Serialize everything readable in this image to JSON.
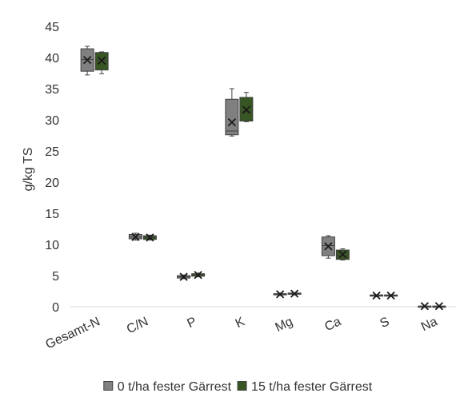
{
  "chart_data": {
    "type": "box",
    "ylabel": "g/kg TS",
    "xlabel": "",
    "ylim": [
      0,
      45
    ],
    "yticks": [
      0,
      5,
      10,
      15,
      20,
      25,
      30,
      35,
      40,
      45
    ],
    "grid": false,
    "legend_position": "bottom",
    "categories": [
      "Gesamt-N",
      "C/N",
      "P",
      "K",
      "Mg",
      "Ca",
      "S",
      "Na"
    ],
    "series": [
      {
        "name": "0 t/ha fester Gärrest",
        "color": "#808080",
        "boxes": [
          {
            "min": 37.2,
            "q1": 37.8,
            "median": 39.7,
            "q3": 41.4,
            "max": 41.8,
            "mean": 39.6
          },
          {
            "min": 10.7,
            "q1": 10.9,
            "median": 11.2,
            "q3": 11.6,
            "max": 11.8,
            "mean": 11.2
          },
          {
            "min": 4.5,
            "q1": 4.6,
            "median": 4.8,
            "q3": 5.0,
            "max": 5.1,
            "mean": 4.8
          },
          {
            "min": 27.4,
            "q1": 27.6,
            "median": 28.2,
            "q3": 33.3,
            "max": 35.0,
            "mean": 29.6
          },
          {
            "min": 1.8,
            "q1": 1.9,
            "median": 2.0,
            "q3": 2.1,
            "max": 2.2,
            "mean": 2.0
          },
          {
            "min": 7.8,
            "q1": 8.2,
            "median": 9.8,
            "q3": 11.2,
            "max": 11.4,
            "mean": 9.7
          },
          {
            "min": 1.6,
            "q1": 1.7,
            "median": 1.8,
            "q3": 1.9,
            "max": 1.9,
            "mean": 1.8
          },
          {
            "min": 0.1,
            "q1": 0.1,
            "median": 0.1,
            "q3": 0.1,
            "max": 0.1,
            "mean": 0.1
          }
        ]
      },
      {
        "name": "15 t/ha fester Gärrest",
        "color": "#375623",
        "boxes": [
          {
            "min": 37.4,
            "q1": 38.0,
            "median": 39.6,
            "q3": 40.8,
            "max": 40.9,
            "mean": 39.5
          },
          {
            "min": 10.7,
            "q1": 10.8,
            "median": 11.1,
            "q3": 11.4,
            "max": 11.5,
            "mean": 11.1
          },
          {
            "min": 4.8,
            "q1": 4.9,
            "median": 5.1,
            "q3": 5.3,
            "max": 5.4,
            "mean": 5.1
          },
          {
            "min": 29.7,
            "q1": 29.8,
            "median": 31.3,
            "q3": 33.6,
            "max": 34.4,
            "mean": 31.6
          },
          {
            "min": 1.9,
            "q1": 2.0,
            "median": 2.1,
            "q3": 2.2,
            "max": 2.2,
            "mean": 2.1
          },
          {
            "min": 7.5,
            "q1": 7.6,
            "median": 8.2,
            "q3": 9.1,
            "max": 9.3,
            "mean": 8.4
          },
          {
            "min": 1.7,
            "q1": 1.7,
            "median": 1.8,
            "q3": 1.9,
            "max": 1.9,
            "mean": 1.8
          },
          {
            "min": 0.1,
            "q1": 0.1,
            "median": 0.1,
            "q3": 0.1,
            "max": 0.1,
            "mean": 0.1
          }
        ]
      }
    ]
  }
}
